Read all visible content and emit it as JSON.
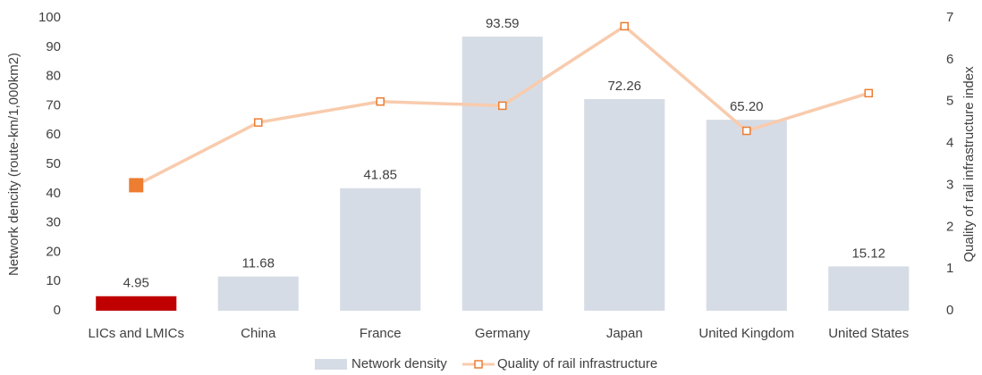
{
  "chart_data": {
    "type": "bar_line",
    "categories": [
      "LICs and LMICs",
      "China",
      "France",
      "Germany",
      "Japan",
      "United Kingdom",
      "United States"
    ],
    "series": [
      {
        "name": "Network density",
        "type": "bar",
        "color": "#d6dce5",
        "colors": [
          "#c00000",
          "#d6dce5",
          "#d6dce5",
          "#d6dce5",
          "#d6dce5",
          "#d6dce5",
          "#d6dce5"
        ],
        "values": [
          4.95,
          11.68,
          41.85,
          93.59,
          72.26,
          65.2,
          15.12
        ],
        "value_labels": [
          "4.95",
          "11.68",
          "41.85",
          "93.59",
          "72.26",
          "65.20",
          "15.12"
        ]
      },
      {
        "name": "Quality of rail infrastructure",
        "type": "line",
        "axis": "y2",
        "color": "#f8cbad",
        "marker_color": "#ed7d31",
        "marker_fills": [
          "#ed7d31",
          "#ffffff",
          "#ffffff",
          "#ffffff",
          "#ffffff",
          "#ffffff",
          "#ffffff"
        ],
        "values": [
          3.0,
          4.5,
          5.0,
          4.9,
          6.8,
          4.3,
          5.2
        ]
      }
    ],
    "ylabel": "Network dencity (route-km/1,000km2)",
    "y2label": "Quality of rail infrastructure index",
    "ylim": [
      0,
      100
    ],
    "yticks": [
      0,
      10,
      20,
      30,
      40,
      50,
      60,
      70,
      80,
      90,
      100
    ],
    "y2lim": [
      0,
      7
    ],
    "y2ticks": [
      0,
      1,
      2,
      3,
      4,
      5,
      6,
      7
    ],
    "grid": false,
    "legend": "bottom"
  }
}
